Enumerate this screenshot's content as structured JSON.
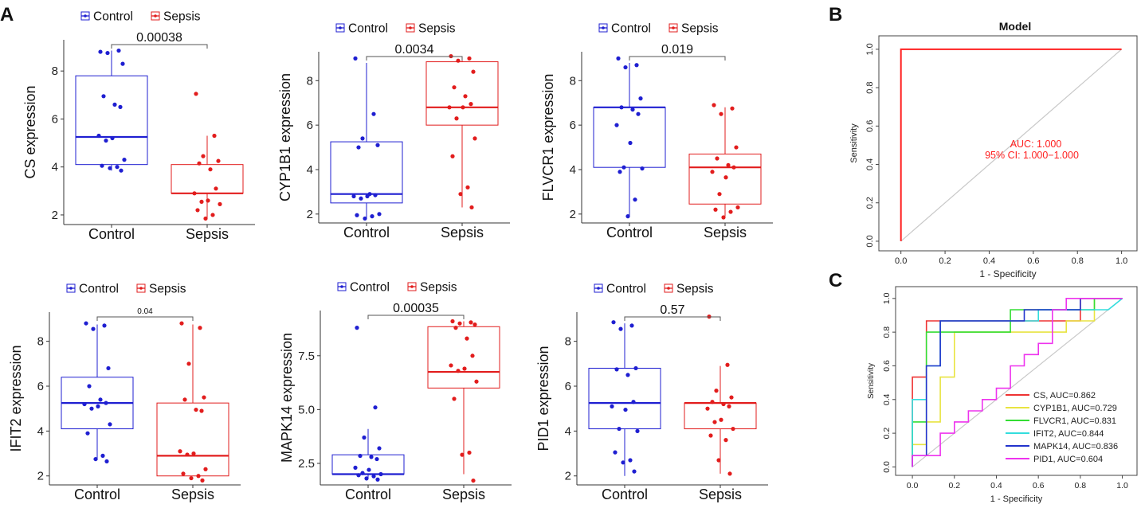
{
  "panel_labels": {
    "A": "A",
    "B": "B",
    "C": "C"
  },
  "legend": {
    "control": "Control",
    "sepsis": "Sepsis"
  },
  "colors": {
    "control": "#1f1fd1",
    "sepsis": "#e21d1d",
    "axis": "#333333",
    "diag": "#c8c8c8",
    "roc": "#ff2020"
  },
  "chart_data": [
    {
      "type": "boxplot",
      "gene": "CS",
      "ylabel": "CS expression",
      "categories": [
        "Control",
        "Sepsis"
      ],
      "pvalue": "0.00038",
      "ylim": [
        1.6,
        9.3
      ],
      "yticks": [
        2,
        4,
        6,
        8
      ],
      "groups": [
        {
          "name": "Control",
          "min": 3.85,
          "q1": 4.1,
          "median": 5.25,
          "q3": 7.8,
          "max": 8.85,
          "points": [
            8.8,
            8.85,
            8.75,
            8.3,
            6.95,
            6.6,
            6.5,
            5.3,
            5.2,
            5.1,
            4.3,
            4.05,
            4.0,
            3.95,
            3.85
          ]
        },
        {
          "name": "Sepsis",
          "min": 1.85,
          "q1": 2.9,
          "median": 2.9,
          "q3": 4.1,
          "max": 5.3,
          "points": [
            7.05,
            5.3,
            4.45,
            4.25,
            4.15,
            3.9,
            3.1,
            2.9,
            2.6,
            2.55,
            2.45,
            2.2,
            2.0,
            1.85
          ]
        }
      ]
    },
    {
      "type": "boxplot",
      "gene": "CYP1B1",
      "ylabel": "CYP1B1 expression",
      "categories": [
        "Control",
        "Sepsis"
      ],
      "pvalue": "0.0034",
      "ylim": [
        1.6,
        9.3
      ],
      "yticks": [
        2,
        4,
        6,
        8
      ],
      "groups": [
        {
          "name": "Control",
          "min": 1.8,
          "q1": 2.5,
          "median": 2.9,
          "q3": 5.25,
          "max": 8.8,
          "points": [
            9.0,
            6.5,
            5.4,
            5.1,
            5.0,
            2.9,
            2.85,
            2.8,
            2.8,
            2.7,
            2.0,
            1.95,
            1.9,
            1.8
          ]
        },
        {
          "name": "Sepsis",
          "min": 2.3,
          "q1": 6.0,
          "median": 6.8,
          "q3": 8.85,
          "max": 9.1,
          "points": [
            9.1,
            9.0,
            8.9,
            8.4,
            7.7,
            7.3,
            6.95,
            6.8,
            6.8,
            6.3,
            5.4,
            4.6,
            3.2,
            2.9,
            2.3
          ]
        }
      ]
    },
    {
      "type": "boxplot",
      "gene": "FLVCR1",
      "ylabel": "FLVCR1 expression",
      "categories": [
        "Control",
        "Sepsis"
      ],
      "pvalue": "0.019",
      "ylim": [
        1.6,
        9.3
      ],
      "yticks": [
        2,
        4,
        6,
        8
      ],
      "groups": [
        {
          "name": "Control",
          "min": 1.9,
          "q1": 4.1,
          "median": 6.8,
          "q3": 6.8,
          "max": 8.8,
          "points": [
            9.0,
            8.7,
            8.6,
            7.2,
            6.8,
            6.7,
            6.5,
            6.0,
            5.2,
            4.1,
            4.05,
            3.9,
            2.65,
            1.9
          ]
        },
        {
          "name": "Sepsis",
          "min": 1.9,
          "q1": 2.45,
          "median": 4.1,
          "q3": 4.7,
          "max": 6.8,
          "points": [
            6.9,
            6.75,
            6.5,
            5.0,
            4.5,
            4.2,
            4.1,
            3.9,
            3.65,
            2.9,
            2.3,
            2.2,
            2.1,
            1.85
          ]
        }
      ]
    },
    {
      "type": "boxplot",
      "gene": "IFIT2",
      "ylabel": "IFIT2 expression",
      "categories": [
        "Control",
        "Sepsis"
      ],
      "pvalue": "0.04",
      "ylim": [
        1.6,
        9.3
      ],
      "yticks": [
        2,
        4,
        6,
        8
      ],
      "groups": [
        {
          "name": "Control",
          "min": 2.7,
          "q1": 4.1,
          "median": 5.25,
          "q3": 6.4,
          "max": 8.75,
          "points": [
            8.8,
            8.7,
            8.55,
            6.8,
            6.0,
            5.4,
            5.25,
            5.2,
            5.1,
            5.0,
            4.3,
            3.9,
            2.9,
            2.75,
            2.65
          ]
        },
        {
          "name": "Sepsis",
          "min": 2.0,
          "q1": 2.0,
          "median": 2.9,
          "q3": 5.25,
          "max": 8.75,
          "points": [
            8.8,
            8.6,
            7.0,
            5.5,
            5.4,
            4.95,
            4.9,
            3.1,
            3.0,
            2.95,
            2.3,
            2.1,
            2.0,
            1.9,
            1.8
          ]
        }
      ]
    },
    {
      "type": "boxplot",
      "gene": "MAPK14",
      "ylabel": "MAPK14 expression",
      "categories": [
        "Control",
        "Sepsis"
      ],
      "pvalue": "0.00035",
      "ylim": [
        1.5,
        9.6
      ],
      "yticks": [
        2.5,
        5.0,
        7.5
      ],
      "ytick_labels": [
        "2.5",
        "5.0",
        "7.5"
      ],
      "groups": [
        {
          "name": "Control",
          "min": 1.8,
          "q1": 2.0,
          "median": 2.0,
          "q3": 2.9,
          "max": 4.1,
          "points": [
            8.8,
            5.1,
            3.7,
            3.2,
            2.85,
            2.8,
            2.7,
            2.3,
            2.2,
            2.05,
            2.0,
            1.95,
            1.9,
            1.8,
            1.75
          ]
        },
        {
          "name": "Sepsis",
          "min": 2.0,
          "q1": 6.0,
          "median": 6.75,
          "q3": 8.85,
          "max": 9.1,
          "points": [
            9.1,
            9.05,
            9.0,
            8.95,
            8.8,
            8.3,
            7.5,
            7.05,
            6.9,
            6.8,
            6.3,
            5.5,
            3.0,
            2.9,
            1.7
          ]
        }
      ]
    },
    {
      "type": "boxplot",
      "gene": "PID1",
      "ylabel": "PID1 expression",
      "categories": [
        "Control",
        "Sepsis"
      ],
      "pvalue": "0.57",
      "ylim": [
        1.6,
        9.3
      ],
      "yticks": [
        2,
        4,
        6,
        8
      ],
      "groups": [
        {
          "name": "Control",
          "min": 2.0,
          "q1": 4.1,
          "median": 5.25,
          "q3": 6.8,
          "max": 8.8,
          "points": [
            8.85,
            8.7,
            8.55,
            6.8,
            6.75,
            6.5,
            5.3,
            5.1,
            4.95,
            4.1,
            4.0,
            3.05,
            2.7,
            2.6,
            2.2
          ]
        },
        {
          "name": "Sepsis",
          "min": 2.1,
          "q1": 4.1,
          "median": 5.25,
          "q3": 5.25,
          "max": 6.9,
          "points": [
            9.1,
            6.95,
            5.8,
            5.5,
            5.3,
            5.2,
            5.1,
            5.0,
            4.5,
            4.4,
            4.1,
            3.8,
            3.6,
            2.7,
            2.1
          ]
        }
      ]
    },
    {
      "type": "line",
      "title": "Model",
      "xlabel": "1 - Specificity",
      "ylabel": "Sensitivity",
      "xlim": [
        -0.1,
        1.07
      ],
      "ylim": [
        -0.05,
        1.07
      ],
      "ticks": [
        "0.0",
        "0.2",
        "0.4",
        "0.6",
        "0.8",
        "1.0"
      ],
      "auc_text": "AUC: 1.000",
      "ci_text": "95% CI: 1.000−1.000",
      "series": [
        {
          "name": "Model",
          "x": [
            0,
            0,
            1
          ],
          "y": [
            0,
            1,
            1
          ]
        }
      ]
    },
    {
      "type": "line",
      "xlabel": "1 - Specificity",
      "ylabel": "Sensitivity",
      "xlim": [
        -0.08,
        1.07
      ],
      "ylim": [
        -0.05,
        1.07
      ],
      "ticks": [
        "0.0",
        "0.2",
        "0.4",
        "0.6",
        "0.8",
        "1.0"
      ],
      "series": [
        {
          "name": "CS, AUC=0.862",
          "color": "#ee3333",
          "x": [
            0,
            0,
            0.067,
            0.067,
            0.8,
            0.8,
            1.0
          ],
          "y": [
            0,
            0.533,
            0.533,
            0.867,
            0.867,
            1.0,
            1.0
          ]
        },
        {
          "name": "CYP1B1, AUC=0.729",
          "color": "#e8e440",
          "x": [
            0,
            0,
            0.067,
            0.067,
            0.133,
            0.133,
            0.2,
            0.2,
            0.733,
            0.733,
            0.867,
            0.867,
            1.0
          ],
          "y": [
            0,
            0.133,
            0.133,
            0.267,
            0.267,
            0.533,
            0.533,
            0.8,
            0.8,
            0.867,
            0.867,
            1.0,
            1.0
          ]
        },
        {
          "name": "FLVCR1, AUC=0.831",
          "color": "#33dd33",
          "x": [
            0,
            0,
            0.067,
            0.067,
            0.4,
            0.4,
            0.467,
            0.467,
            0.867,
            0.867,
            1.0
          ],
          "y": [
            0,
            0.267,
            0.267,
            0.8,
            0.8,
            0.8,
            0.8,
            0.933,
            0.933,
            1.0,
            1.0
          ]
        },
        {
          "name": "IFIT2, AUC=0.844",
          "color": "#33dddd",
          "x": [
            0,
            0,
            0.067,
            0.067,
            0.133,
            0.133,
            0.6,
            0.6,
            0.933,
            0.933,
            1.0
          ],
          "y": [
            0,
            0.4,
            0.4,
            0.6,
            0.6,
            0.867,
            0.867,
            0.933,
            0.933,
            0.933,
            1.0
          ]
        },
        {
          "name": "MAPK14, AUC=0.836",
          "color": "#2233cc",
          "x": [
            0,
            0,
            0.067,
            0.067,
            0.133,
            0.133,
            0.533,
            0.533,
            0.8,
            0.8,
            1.0
          ],
          "y": [
            0,
            0.067,
            0.067,
            0.6,
            0.6,
            0.867,
            0.867,
            0.933,
            0.933,
            1.0,
            1.0
          ]
        },
        {
          "name": "PID1, AUC=0.604",
          "color": "#ee33ee",
          "x": [
            0,
            0,
            0.133,
            0.133,
            0.2,
            0.2,
            0.267,
            0.267,
            0.333,
            0.333,
            0.4,
            0.4,
            0.467,
            0.467,
            0.533,
            0.533,
            0.6,
            0.6,
            0.667,
            0.667,
            0.733,
            0.733,
            0.867,
            0.867,
            1.0
          ],
          "y": [
            0,
            0.067,
            0.067,
            0.2,
            0.2,
            0.267,
            0.267,
            0.333,
            0.333,
            0.4,
            0.4,
            0.467,
            0.467,
            0.6,
            0.6,
            0.667,
            0.667,
            0.733,
            0.733,
            0.933,
            0.933,
            1.0,
            1.0,
            1.0,
            1.0
          ]
        }
      ]
    }
  ]
}
